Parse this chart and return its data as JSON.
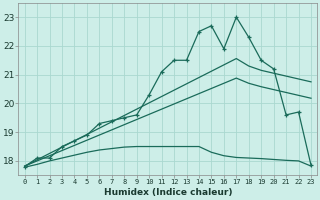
{
  "xlabel": "Humidex (Indice chaleur)",
  "bg_color": "#cdeee8",
  "grid_color": "#aad8d0",
  "line_color": "#1a6b5a",
  "xlim": [
    -0.5,
    23.5
  ],
  "ylim": [
    17.5,
    23.5
  ],
  "xticks": [
    0,
    1,
    2,
    3,
    4,
    5,
    6,
    7,
    8,
    9,
    10,
    11,
    12,
    13,
    14,
    15,
    16,
    17,
    18,
    19,
    20,
    21,
    22,
    23
  ],
  "yticks": [
    18,
    19,
    20,
    21,
    22,
    23
  ],
  "series1_x": [
    0,
    1,
    2,
    3,
    4,
    5,
    6,
    7,
    8,
    9,
    10,
    11,
    12,
    13,
    14,
    15,
    16,
    17,
    18,
    19,
    20,
    21,
    22,
    23
  ],
  "series1_y": [
    17.8,
    18.1,
    18.1,
    18.5,
    18.7,
    18.9,
    19.3,
    19.4,
    19.5,
    19.6,
    20.3,
    21.1,
    21.5,
    21.5,
    22.5,
    22.7,
    21.9,
    23.0,
    22.3,
    21.5,
    21.2,
    19.6,
    19.7,
    17.85
  ],
  "series2_x": [
    0,
    1,
    2,
    3,
    4,
    5,
    6,
    7,
    8,
    9,
    10,
    11,
    12,
    13,
    14,
    15,
    16,
    17,
    18,
    19,
    20,
    21,
    22,
    23
  ],
  "series2_y": [
    17.82,
    18.04,
    18.26,
    18.48,
    18.7,
    18.92,
    19.14,
    19.36,
    19.58,
    19.8,
    20.02,
    20.24,
    20.46,
    20.68,
    20.9,
    21.12,
    21.34,
    21.56,
    21.3,
    21.15,
    21.05,
    20.95,
    20.85,
    20.75
  ],
  "series3_x": [
    0,
    1,
    2,
    3,
    4,
    5,
    6,
    7,
    8,
    9,
    10,
    11,
    12,
    13,
    14,
    15,
    16,
    17,
    18,
    19,
    20,
    21,
    22,
    23
  ],
  "series3_y": [
    17.82,
    18.0,
    18.18,
    18.36,
    18.54,
    18.72,
    18.9,
    19.08,
    19.26,
    19.44,
    19.62,
    19.8,
    19.98,
    20.16,
    20.34,
    20.52,
    20.7,
    20.88,
    20.7,
    20.58,
    20.48,
    20.38,
    20.28,
    20.18
  ],
  "series4_x": [
    0,
    1,
    2,
    3,
    4,
    5,
    6,
    7,
    8,
    9,
    10,
    11,
    12,
    13,
    14,
    15,
    16,
    17,
    18,
    19,
    20,
    21,
    22,
    23
  ],
  "series4_y": [
    17.78,
    17.88,
    18.0,
    18.1,
    18.2,
    18.3,
    18.38,
    18.43,
    18.48,
    18.5,
    18.5,
    18.5,
    18.5,
    18.5,
    18.5,
    18.3,
    18.18,
    18.12,
    18.1,
    18.08,
    18.05,
    18.02,
    18.0,
    17.82
  ]
}
